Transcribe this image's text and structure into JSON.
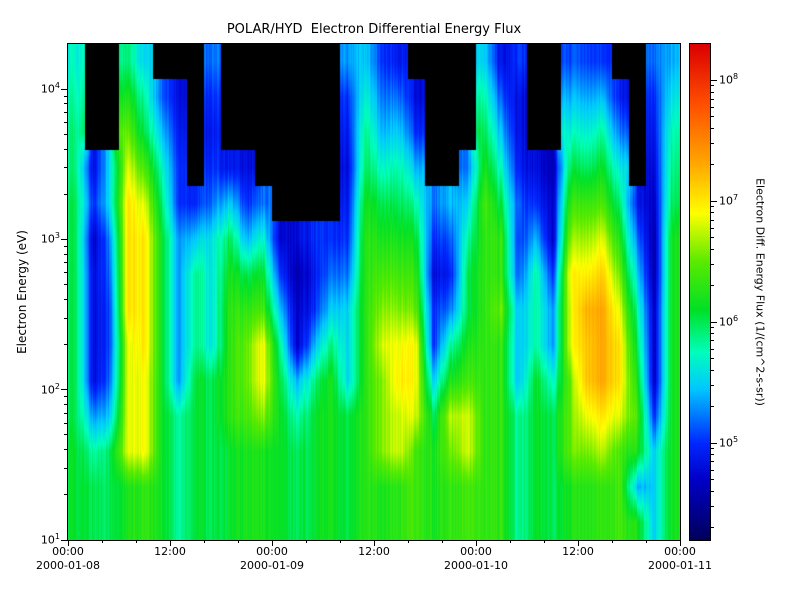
{
  "chart_data": {
    "type": "heatmap",
    "title": "POLAR/HYD  Electron Differential Energy Flux",
    "x_axis": {
      "hours_total": 72,
      "start": "2000-01-08 00:00",
      "end": "2000-01-11 00:00",
      "major_ticks": [
        {
          "hour": 0,
          "label": "00:00",
          "date": "2000-01-08"
        },
        {
          "hour": 12,
          "label": "12:00",
          "date": ""
        },
        {
          "hour": 24,
          "label": "00:00",
          "date": "2000-01-09"
        },
        {
          "hour": 36,
          "label": "12:00",
          "date": ""
        },
        {
          "hour": 48,
          "label": "00:00",
          "date": "2000-01-10"
        },
        {
          "hour": 60,
          "label": "12:00",
          "date": ""
        },
        {
          "hour": 72,
          "label": "00:00",
          "date": "2000-01-11"
        }
      ],
      "minor_tick_interval_hours": 4
    },
    "y_axis": {
      "label": "Electron Energy (eV)",
      "scale": "log",
      "log_min": 1.0,
      "log_max": 4.301,
      "min_ev": 10,
      "max_ev": 20000,
      "tick_exponents": [
        1,
        2,
        3,
        4
      ]
    },
    "colorbar": {
      "label": "Electron Diff. Energy Flux (1/(cm^2-s-sr))",
      "scale": "log",
      "log_min": 4.2,
      "log_max": 8.3,
      "tick_exponents": [
        5,
        6,
        7,
        8
      ],
      "no_data_color": "#000000",
      "stops": [
        [
          4.2,
          "#00005a"
        ],
        [
          4.7,
          "#0000c8"
        ],
        [
          5.0,
          "#0028ff"
        ],
        [
          5.45,
          "#00c8ff"
        ],
        [
          5.75,
          "#00ffbe"
        ],
        [
          6.1,
          "#00e128"
        ],
        [
          6.5,
          "#5aeb00"
        ],
        [
          6.9,
          "#ffff00"
        ],
        [
          7.3,
          "#ffaa00"
        ],
        [
          7.8,
          "#ff5000"
        ],
        [
          8.3,
          "#dc0000"
        ]
      ]
    },
    "grid": {
      "description": "log10 electron differential energy flux; 36 time columns (2 h each, from 2000-01-08 00:00) x 14 energy rows listed bottom (10 eV) to top (20000 eV); null = below threshold (black)",
      "hours_per_column": 2,
      "row_energies_ev": [
        13,
        22,
        38,
        65,
        110,
        190,
        330,
        560,
        960,
        1650,
        2800,
        4800,
        8300,
        14000
      ],
      "log10_flux": [
        [
          6.1,
          6.1,
          6.1,
          6.0,
          6.0,
          6.0,
          6.0,
          6.0,
          6.0,
          6.0,
          5.9,
          5.9,
          5.8,
          5.7
        ],
        [
          6.0,
          6.0,
          5.8,
          5.3,
          4.8,
          4.8,
          4.8,
          4.8,
          4.7,
          5.0,
          4.8,
          null,
          null,
          null
        ],
        [
          6.0,
          6.0,
          6.0,
          5.5,
          5.2,
          5.1,
          5.1,
          5.2,
          5.3,
          5.6,
          5.6,
          null,
          null,
          null
        ],
        [
          6.2,
          6.2,
          6.8,
          6.8,
          6.8,
          6.8,
          7.0,
          7.0,
          7.0,
          7.0,
          6.8,
          6.5,
          6.2,
          5.9
        ],
        [
          6.3,
          6.3,
          6.9,
          6.9,
          6.9,
          7.0,
          7.0,
          7.0,
          7.0,
          6.8,
          6.4,
          6.0,
          5.8,
          5.5
        ],
        [
          6.2,
          6.2,
          6.2,
          6.2,
          6.2,
          6.2,
          6.2,
          6.2,
          6.2,
          6.0,
          5.8,
          5.5,
          5.2,
          null
        ],
        [
          5.8,
          5.8,
          5.8,
          5.8,
          5.3,
          5.3,
          5.3,
          5.3,
          5.3,
          5.0,
          5.0,
          4.9,
          4.8,
          null
        ],
        [
          6.1,
          6.1,
          6.1,
          6.1,
          6.1,
          5.9,
          5.9,
          5.9,
          5.5,
          5.0,
          null,
          null,
          null,
          null
        ],
        [
          6.0,
          6.0,
          6.0,
          6.0,
          6.0,
          5.6,
          5.6,
          5.6,
          5.6,
          5.2,
          5.0,
          4.9,
          5.0,
          5.2
        ],
        [
          6.1,
          6.1,
          6.1,
          6.3,
          6.3,
          6.3,
          6.3,
          6.2,
          6.0,
          5.5,
          4.9,
          null,
          null,
          null
        ],
        [
          6.2,
          6.2,
          6.2,
          6.4,
          6.5,
          6.5,
          6.3,
          6.0,
          5.4,
          5.0,
          4.8,
          null,
          null,
          null
        ],
        [
          6.2,
          6.2,
          6.2,
          6.6,
          6.9,
          6.9,
          6.4,
          6.1,
          5.7,
          5.2,
          null,
          null,
          null,
          null
        ],
        [
          6.1,
          6.1,
          6.1,
          6.1,
          6.0,
          5.8,
          5.4,
          5.0,
          4.7,
          null,
          null,
          null,
          null,
          null
        ],
        [
          6.0,
          6.0,
          6.0,
          5.8,
          5.4,
          4.7,
          4.7,
          4.6,
          4.8,
          null,
          null,
          null,
          null,
          null
        ],
        [
          6.1,
          6.1,
          6.1,
          6.1,
          5.9,
          5.4,
          5.0,
          4.9,
          5.0,
          null,
          null,
          null,
          null,
          null
        ],
        [
          6.2,
          6.2,
          6.2,
          6.2,
          6.2,
          5.9,
          5.5,
          5.2,
          5.0,
          null,
          null,
          null,
          null,
          null
        ],
        [
          6.0,
          6.0,
          6.0,
          6.0,
          5.5,
          5.5,
          5.5,
          5.2,
          5.0,
          4.9,
          4.8,
          4.9,
          5.0,
          5.3
        ],
        [
          6.3,
          6.3,
          6.3,
          6.3,
          6.3,
          6.3,
          6.3,
          6.3,
          6.3,
          6.2,
          6.0,
          5.9,
          5.7,
          5.5
        ],
        [
          6.2,
          6.2,
          6.6,
          6.6,
          6.6,
          6.8,
          6.6,
          6.4,
          6.2,
          6.0,
          5.7,
          5.4,
          5.2,
          5.0
        ],
        [
          6.3,
          6.3,
          6.8,
          6.8,
          7.0,
          6.9,
          6.6,
          6.4,
          6.2,
          6.0,
          5.8,
          5.5,
          5.2,
          4.9
        ],
        [
          6.4,
          6.4,
          6.4,
          6.8,
          6.9,
          6.9,
          6.5,
          6.3,
          6.1,
          5.8,
          5.4,
          5.0,
          4.8,
          null
        ],
        [
          6.2,
          6.2,
          6.2,
          6.0,
          5.5,
          5.0,
          5.0,
          4.8,
          5.0,
          5.2,
          null,
          null,
          null,
          null
        ],
        [
          6.3,
          6.3,
          6.5,
          6.7,
          6.2,
          5.8,
          5.2,
          4.9,
          5.1,
          5.4,
          null,
          null,
          null,
          null
        ],
        [
          6.4,
          6.4,
          6.8,
          6.8,
          6.4,
          6.2,
          6.0,
          6.0,
          5.8,
          5.5,
          5.2,
          null,
          null,
          null
        ],
        [
          6.3,
          6.3,
          6.3,
          6.3,
          6.3,
          6.3,
          6.3,
          6.3,
          6.3,
          6.4,
          6.2,
          6.0,
          5.8,
          5.5
        ],
        [
          6.3,
          6.3,
          6.3,
          6.3,
          6.3,
          6.3,
          6.5,
          6.3,
          6.3,
          6.0,
          5.7,
          5.4,
          5.1,
          4.8
        ],
        [
          5.8,
          5.8,
          5.8,
          5.8,
          5.4,
          5.4,
          5.4,
          5.1,
          5.0,
          5.1,
          4.9,
          4.8,
          4.8,
          5.0
        ],
        [
          6.1,
          6.1,
          6.1,
          6.1,
          6.1,
          5.8,
          5.8,
          5.8,
          5.4,
          5.0,
          4.8,
          null,
          null,
          null
        ],
        [
          6.0,
          6.0,
          6.0,
          6.0,
          5.7,
          5.3,
          5.3,
          5.0,
          4.7,
          4.7,
          4.6,
          null,
          null,
          null
        ],
        [
          6.2,
          6.2,
          6.5,
          6.5,
          6.5,
          6.8,
          6.8,
          6.9,
          6.6,
          6.3,
          6.0,
          5.7,
          5.4,
          5.1
        ],
        [
          6.3,
          6.3,
          6.6,
          6.9,
          7.2,
          7.2,
          7.3,
          7.0,
          6.7,
          6.4,
          6.0,
          5.7,
          5.4,
          5.1
        ],
        [
          6.3,
          6.3,
          6.7,
          7.0,
          7.3,
          7.3,
          7.3,
          7.1,
          6.8,
          6.4,
          6.1,
          5.8,
          5.4,
          5.0
        ],
        [
          6.4,
          6.4,
          6.4,
          6.8,
          7.0,
          7.0,
          6.8,
          6.5,
          6.2,
          5.9,
          5.6,
          5.2,
          4.9,
          null
        ],
        [
          6.2,
          5.4,
          6.2,
          6.4,
          6.2,
          6.0,
          5.8,
          5.5,
          5.2,
          4.9,
          null,
          null,
          null,
          null
        ],
        [
          5.5,
          5.5,
          5.5,
          5.0,
          4.7,
          4.7,
          4.7,
          4.6,
          4.6,
          4.7,
          4.8,
          4.9,
          5.0,
          5.2
        ],
        [
          6.2,
          6.2,
          6.2,
          6.2,
          6.2,
          6.2,
          6.2,
          6.2,
          6.2,
          6.0,
          5.9,
          5.8,
          5.6,
          5.4
        ]
      ]
    }
  }
}
